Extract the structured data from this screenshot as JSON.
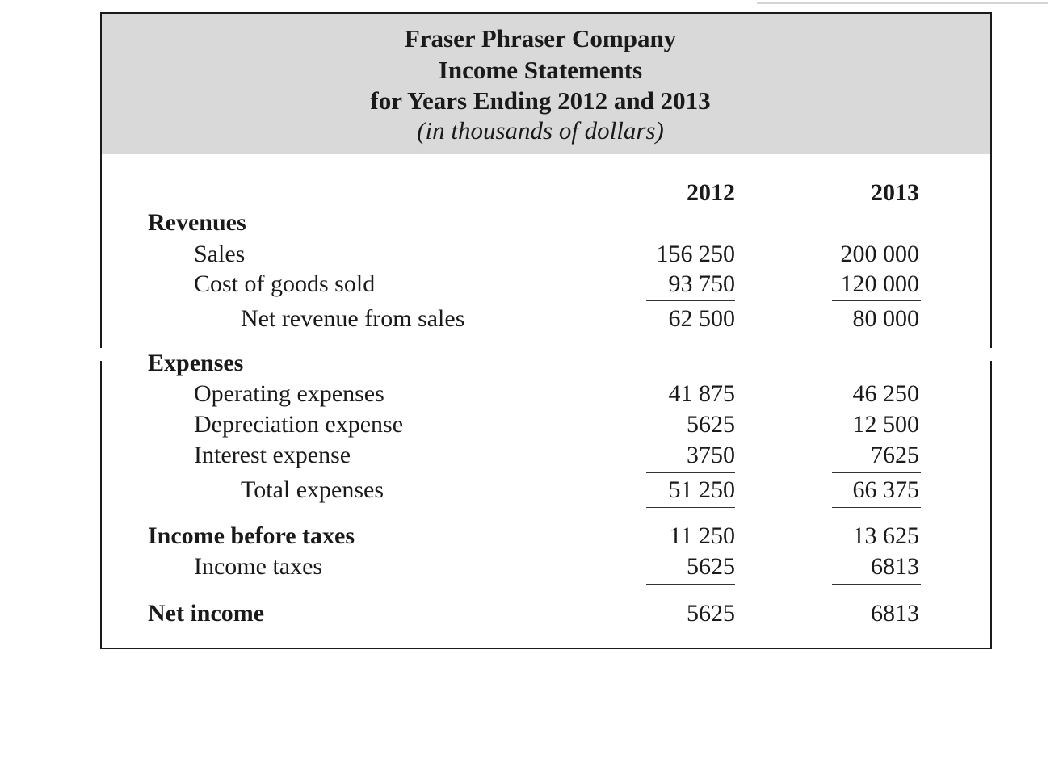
{
  "title": {
    "company": "Fraser Phraser Company",
    "statement": "Income Statements",
    "period": "for Years Ending 2012 and 2013",
    "units": "(in thousands of dollars)"
  },
  "columns": [
    "2012",
    "2013"
  ],
  "rows": {
    "revenues_heading": "Revenues",
    "sales": {
      "label": "Sales",
      "y2012": "156 250",
      "y2013": "200 000"
    },
    "cogs": {
      "label": "Cost of goods sold",
      "y2012": "93 750",
      "y2013": "120 000"
    },
    "net_revenue": {
      "label": "Net revenue from sales",
      "y2012": "62 500",
      "y2013": "80 000"
    },
    "expenses_heading": "Expenses",
    "operating": {
      "label": "Operating expenses",
      "y2012": "41 875",
      "y2013": "46 250"
    },
    "depreciation": {
      "label": "Depreciation expense",
      "y2012": "5625",
      "y2013": "12 500"
    },
    "interest": {
      "label": "Interest expense",
      "y2012": "3750",
      "y2013": "7625"
    },
    "total_expenses": {
      "label": "Total expenses",
      "y2012": "51 250",
      "y2013": "66 375"
    },
    "income_before_taxes": {
      "label": "Income before taxes",
      "y2012": "11 250",
      "y2013": "13 625"
    },
    "income_taxes": {
      "label": "Income taxes",
      "y2012": "5625",
      "y2013": "6813"
    },
    "net_income": {
      "label": "Net income",
      "y2012": "5625",
      "y2013": "6813"
    }
  }
}
